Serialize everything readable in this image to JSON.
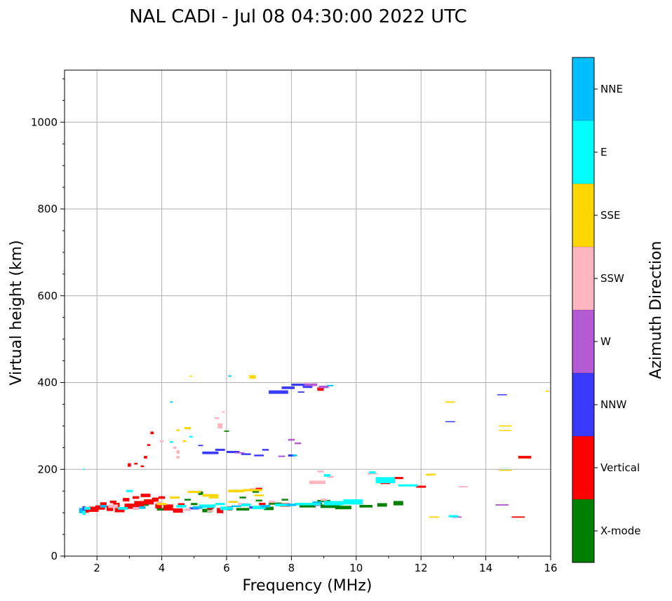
{
  "chart_data": {
    "type": "scatter",
    "title": "NAL CADI - Jul 08 04:30:00 2022 UTC",
    "xlabel": "Frequency (MHz)",
    "ylabel": "Virtual height (km)",
    "xlim": [
      1,
      16
    ],
    "ylim": [
      0,
      1120
    ],
    "xticks": [
      2,
      4,
      6,
      8,
      10,
      12,
      14,
      16
    ],
    "yticks": [
      0,
      200,
      400,
      600,
      800,
      1000
    ],
    "grid": true,
    "colorbar": {
      "label": "Azimuth Direction",
      "categories": [
        {
          "name": "X-mode",
          "color": "#008000"
        },
        {
          "name": "Vertical",
          "color": "#ff0000"
        },
        {
          "name": "NNW",
          "color": "#3a3aff"
        },
        {
          "name": "W",
          "color": "#b45ad2"
        },
        {
          "name": "SSW",
          "color": "#ffb6c1"
        },
        {
          "name": "SSE",
          "color": "#ffd700"
        },
        {
          "name": "E",
          "color": "#00ffff"
        },
        {
          "name": "NNE",
          "color": "#00bfff"
        }
      ]
    },
    "series": [
      {
        "name": "X-mode",
        "points": [
          [
            5.4,
            105,
            0.3,
            8
          ],
          [
            6.5,
            108,
            0.4,
            6
          ],
          [
            7.3,
            110,
            0.3,
            8
          ],
          [
            8.5,
            115,
            0.5,
            6
          ],
          [
            9.2,
            115,
            0.6,
            8
          ],
          [
            9.6,
            112,
            0.5,
            8
          ],
          [
            10.3,
            115,
            0.4,
            6
          ],
          [
            10.8,
            118,
            0.3,
            8
          ],
          [
            11.3,
            122,
            0.3,
            10
          ],
          [
            9.0,
            127,
            0.4,
            5
          ],
          [
            5.0,
            120,
            0.2,
            5
          ],
          [
            6.2,
            125,
            0.2,
            4
          ],
          [
            3.5,
            118,
            0.2,
            4
          ],
          [
            5.2,
            145,
            0.15,
            8
          ],
          [
            6.5,
            135,
            0.2,
            4
          ],
          [
            7.0,
            128,
            0.2,
            4
          ],
          [
            7.8,
            130,
            0.2,
            4
          ],
          [
            8.8,
            122,
            0.3,
            5
          ],
          [
            4.0,
            108,
            0.3,
            6
          ],
          [
            6.9,
            148,
            0.2,
            4
          ],
          [
            4.8,
            130,
            0.2,
            4
          ],
          [
            8.2,
            395,
            0.3,
            5
          ],
          [
            7.5,
            121,
            0.4,
            5
          ],
          [
            6.0,
            288,
            0.15,
            3
          ]
        ]
      },
      {
        "name": "Vertical",
        "points": [
          [
            1.6,
            105,
            0.3,
            10
          ],
          [
            1.9,
            108,
            0.3,
            12
          ],
          [
            2.1,
            112,
            0.3,
            10
          ],
          [
            2.4,
            110,
            0.2,
            12
          ],
          [
            2.7,
            106,
            0.3,
            10
          ],
          [
            3.0,
            115,
            0.3,
            12
          ],
          [
            3.3,
            120,
            0.3,
            14
          ],
          [
            3.6,
            125,
            0.3,
            12
          ],
          [
            3.8,
            130,
            0.2,
            10
          ],
          [
            4.2,
            112,
            0.3,
            14
          ],
          [
            4.5,
            105,
            0.3,
            10
          ],
          [
            2.5,
            125,
            0.2,
            6
          ],
          [
            2.9,
            130,
            0.2,
            8
          ],
          [
            3.2,
            135,
            0.2,
            6
          ],
          [
            3.5,
            140,
            0.3,
            8
          ],
          [
            4.0,
            135,
            0.2,
            6
          ],
          [
            5.8,
            105,
            0.2,
            12
          ],
          [
            6.1,
            110,
            0.15,
            10
          ],
          [
            7.1,
            120,
            0.2,
            6
          ],
          [
            7.8,
            118,
            0.3,
            8
          ],
          [
            8.9,
            385,
            0.2,
            8
          ],
          [
            3.7,
            284,
            0.1,
            6
          ],
          [
            3.6,
            256,
            0.1,
            4
          ],
          [
            3.0,
            210,
            0.1,
            8
          ],
          [
            3.2,
            213,
            0.1,
            4
          ],
          [
            3.4,
            207,
            0.1,
            4
          ],
          [
            3.5,
            228,
            0.1,
            6
          ],
          [
            7.0,
            155,
            0.2,
            5
          ],
          [
            11.3,
            180,
            0.3,
            5
          ],
          [
            12.0,
            160,
            0.3,
            5
          ],
          [
            15.2,
            228,
            0.4,
            6
          ],
          [
            15.0,
            90,
            0.4,
            3
          ],
          [
            10.9,
            168,
            0.3,
            4
          ],
          [
            2.2,
            120,
            0.2,
            8
          ],
          [
            2.6,
            118,
            0.2,
            10
          ],
          [
            3.9,
            115,
            0.2,
            10
          ],
          [
            4.6,
            118,
            0.2,
            8
          ],
          [
            5.5,
            112,
            0.2,
            8
          ]
        ]
      },
      {
        "name": "NNW",
        "points": [
          [
            5.5,
            238,
            0.5,
            6
          ],
          [
            5.8,
            245,
            0.3,
            5
          ],
          [
            6.2,
            240,
            0.4,
            5
          ],
          [
            6.6,
            235,
            0.3,
            4
          ],
          [
            7.0,
            232,
            0.3,
            4
          ],
          [
            7.2,
            245,
            0.2,
            4
          ],
          [
            7.6,
            378,
            0.6,
            8
          ],
          [
            7.9,
            388,
            0.4,
            6
          ],
          [
            8.2,
            395,
            0.4,
            5
          ],
          [
            8.5,
            390,
            0.3,
            5
          ],
          [
            1.6,
            110,
            0.1,
            10
          ],
          [
            5.2,
            255,
            0.15,
            3
          ],
          [
            8.0,
            232,
            0.2,
            5
          ],
          [
            7.7,
            230,
            0.2,
            3
          ],
          [
            12.9,
            310,
            0.3,
            2
          ],
          [
            14.5,
            372,
            0.3,
            2
          ],
          [
            5.0,
            110,
            0.3,
            5
          ],
          [
            6.8,
            112,
            0.2,
            5
          ],
          [
            8.3,
            378,
            0.2,
            3
          ]
        ]
      },
      {
        "name": "W",
        "points": [
          [
            8.6,
            395,
            0.4,
            6
          ],
          [
            9.0,
            390,
            0.3,
            6
          ],
          [
            8.0,
            268,
            0.2,
            4
          ],
          [
            8.2,
            260,
            0.2,
            4
          ],
          [
            7.7,
            230,
            0.2,
            3
          ],
          [
            6.4,
            238,
            0.3,
            3
          ],
          [
            14.5,
            118,
            0.4,
            3
          ],
          [
            13.1,
            90,
            0.3,
            3
          ],
          [
            8.8,
            117,
            0.2,
            3
          ]
        ]
      },
      {
        "name": "SSW",
        "points": [
          [
            4.5,
            240,
            0.1,
            8
          ],
          [
            4.5,
            228,
            0.1,
            6
          ],
          [
            4.4,
            250,
            0.1,
            5
          ],
          [
            5.8,
            300,
            0.15,
            12
          ],
          [
            5.7,
            318,
            0.15,
            4
          ],
          [
            5.9,
            332,
            0.1,
            3
          ],
          [
            8.8,
            170,
            0.5,
            8
          ],
          [
            8.9,
            195,
            0.2,
            4
          ],
          [
            9.2,
            183,
            0.2,
            5
          ],
          [
            10.5,
            190,
            0.3,
            4
          ],
          [
            13.3,
            160,
            0.3,
            3
          ],
          [
            2.5,
            115,
            0.3,
            8
          ],
          [
            3.2,
            110,
            0.2,
            6
          ],
          [
            4.8,
            107,
            0.2,
            6
          ],
          [
            6.0,
            110,
            0.2,
            8
          ],
          [
            6.5,
            120,
            0.3,
            5
          ],
          [
            7.4,
            125,
            0.2,
            5
          ],
          [
            4.0,
            265,
            0.1,
            4
          ],
          [
            5.5,
            104,
            0.2,
            4
          ],
          [
            6.8,
            155,
            0.2,
            3
          ],
          [
            3.9,
            123,
            0.2,
            6
          ],
          [
            9.0,
            130,
            0.2,
            5
          ]
        ]
      },
      {
        "name": "SSE",
        "points": [
          [
            4.8,
            295,
            0.2,
            5
          ],
          [
            4.5,
            290,
            0.1,
            4
          ],
          [
            4.7,
            265,
            0.1,
            4
          ],
          [
            4.9,
            415,
            0.1,
            2
          ],
          [
            6.8,
            413,
            0.2,
            8
          ],
          [
            6.3,
            150,
            0.5,
            6
          ],
          [
            6.8,
            152,
            0.6,
            5
          ],
          [
            5.5,
            140,
            0.5,
            6
          ],
          [
            5.0,
            148,
            0.4,
            5
          ],
          [
            4.0,
            120,
            0.3,
            5
          ],
          [
            4.4,
            135,
            0.3,
            5
          ],
          [
            12.3,
            188,
            0.3,
            4
          ],
          [
            12.9,
            355,
            0.3,
            3
          ],
          [
            14.6,
            300,
            0.4,
            3
          ],
          [
            14.6,
            290,
            0.4,
            2
          ],
          [
            14.6,
            198,
            0.4,
            2
          ],
          [
            12.4,
            90,
            0.3,
            3
          ],
          [
            15.9,
            380,
            0.1,
            3
          ],
          [
            6.2,
            125,
            0.3,
            4
          ],
          [
            7.0,
            140,
            0.3,
            4
          ],
          [
            5.6,
            135,
            0.3,
            4
          ]
        ]
      },
      {
        "name": "E",
        "points": [
          [
            1.6,
            100,
            0.1,
            10
          ],
          [
            1.7,
            110,
            0.2,
            6
          ],
          [
            3.0,
            150,
            0.2,
            5
          ],
          [
            4.3,
            263,
            0.1,
            4
          ],
          [
            4.9,
            275,
            0.1,
            4
          ],
          [
            5.4,
            115,
            0.5,
            8
          ],
          [
            6.0,
            110,
            0.4,
            8
          ],
          [
            7.0,
            112,
            0.4,
            8
          ],
          [
            7.8,
            118,
            0.6,
            6
          ],
          [
            8.5,
            120,
            0.8,
            6
          ],
          [
            9.3,
            122,
            0.6,
            10
          ],
          [
            9.9,
            125,
            0.6,
            12
          ],
          [
            10.5,
            193,
            0.2,
            5
          ],
          [
            10.9,
            175,
            0.6,
            14
          ],
          [
            11.6,
            163,
            0.6,
            5
          ],
          [
            13.0,
            92,
            0.3,
            5
          ],
          [
            9.1,
            186,
            0.2,
            6
          ],
          [
            1.6,
            200,
            0.05,
            3
          ],
          [
            2.8,
            110,
            0.3,
            6
          ],
          [
            4.6,
            115,
            0.3,
            6
          ],
          [
            5.8,
            120,
            0.3,
            5
          ],
          [
            6.6,
            118,
            0.3,
            6
          ]
        ]
      },
      {
        "name": "NNE",
        "points": [
          [
            1.5,
            105,
            0.1,
            12
          ],
          [
            4.3,
            355,
            0.08,
            3
          ],
          [
            6.1,
            415,
            0.1,
            3
          ],
          [
            8.1,
            232,
            0.15,
            4
          ],
          [
            9.2,
            393,
            0.2,
            3
          ],
          [
            8.0,
            118,
            0.3,
            5
          ],
          [
            8.8,
            124,
            0.3,
            4
          ],
          [
            2.2,
            115,
            0.2,
            6
          ],
          [
            3.4,
            112,
            0.2,
            6
          ],
          [
            5.1,
            112,
            0.3,
            6
          ],
          [
            6.3,
            115,
            0.3,
            4
          ],
          [
            7.2,
            115,
            0.3,
            6
          ]
        ]
      }
    ]
  }
}
